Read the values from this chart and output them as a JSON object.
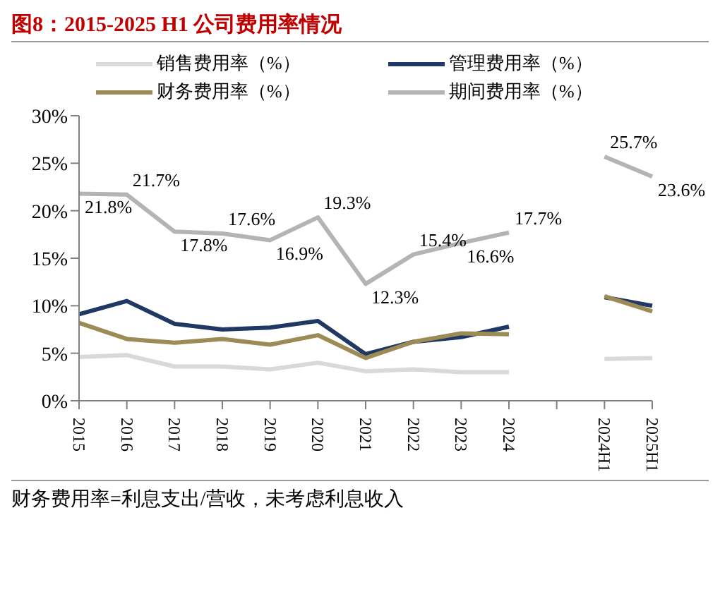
{
  "chart_data": {
    "type": "line",
    "title": "图8：2015-2025 H1 公司费用率情况",
    "categories": [
      "2015",
      "2016",
      "2017",
      "2018",
      "2019",
      "2020",
      "2021",
      "2022",
      "2023",
      "2024",
      null,
      "2024H1",
      "2025H1"
    ],
    "series": [
      {
        "name": "销售费用率（%）",
        "color": "#d9d9d9",
        "values": [
          4.6,
          4.8,
          3.6,
          3.6,
          3.3,
          4.0,
          3.1,
          3.3,
          3.0,
          3.0,
          null,
          4.4,
          4.5
        ]
      },
      {
        "name": "管理费用率（%）",
        "color": "#1f3864",
        "values": [
          9.1,
          10.5,
          8.1,
          7.5,
          7.7,
          8.4,
          4.9,
          6.2,
          6.7,
          7.8,
          null,
          10.9,
          10.0
        ]
      },
      {
        "name": "财务费用率（%）",
        "color": "#9c8b55",
        "values": [
          8.2,
          6.5,
          6.1,
          6.5,
          5.9,
          6.9,
          4.5,
          6.2,
          7.1,
          7.0,
          null,
          11.0,
          9.4
        ]
      },
      {
        "name": "期间费用率（%）",
        "color": "#b4b4b4",
        "values": [
          21.8,
          21.7,
          17.8,
          17.6,
          16.9,
          19.3,
          12.3,
          15.4,
          16.6,
          17.7,
          null,
          25.7,
          23.6
        ],
        "value_labels": [
          "21.8%",
          "21.7%",
          "17.8%",
          "17.6%",
          "16.9%",
          "19.3%",
          "12.3%",
          "15.4%",
          "16.6%",
          "17.7%",
          null,
          "25.7%",
          "23.6%"
        ]
      }
    ],
    "ylim": [
      0,
      30
    ],
    "yticks": [
      {
        "value": 0,
        "label": "0%"
      },
      {
        "value": 5,
        "label": "5%"
      },
      {
        "value": 10,
        "label": "10%"
      },
      {
        "value": 15,
        "label": "15%"
      },
      {
        "value": 20,
        "label": "20%"
      },
      {
        "value": 25,
        "label": "25%"
      },
      {
        "value": 30,
        "label": "30%"
      }
    ],
    "grid": false,
    "legend": "top",
    "marker": "none",
    "line_style": "solid",
    "annotations": [
      "财务费用率=利息支出/营收，未考虑利息收入"
    ]
  }
}
